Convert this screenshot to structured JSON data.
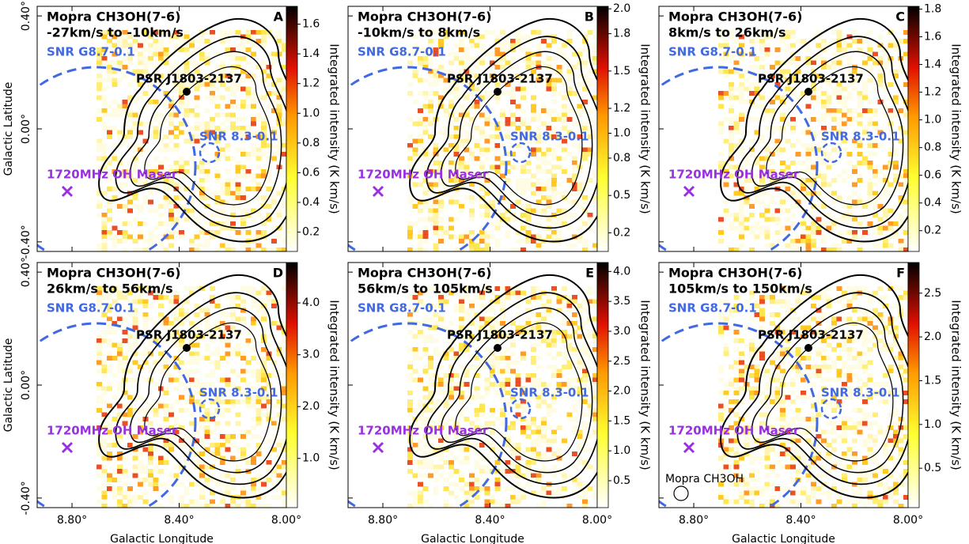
{
  "chart_data": [
    {
      "type": "map",
      "panel": "A",
      "title": [
        "Mopra CH3OH(7-6)",
        "-27km/s to -10km/s"
      ],
      "xlim": [
        8.93,
        8.0
      ],
      "ylim": [
        -0.434,
        0.434
      ],
      "xticks": [
        8.8,
        8.4,
        8.0
      ],
      "yticks": [
        {
          "value": 0.4,
          "label": "0.40°"
        },
        {
          "value": 0,
          "label": "0.00°"
        },
        {
          "value": -0.4,
          "label": "-0.40°"
        }
      ],
      "y_label": "Galactic Latitude",
      "clim": [
        0.07,
        1.72
      ],
      "cticks": [
        0.2,
        0.4,
        0.6,
        0.8,
        {
          "value": 1,
          "label": "1.0"
        },
        1.2,
        1.4,
        1.6
      ],
      "colorbar_label": "Integrated intensity (K km/s)",
      "annotations": {
        "snr_g": "SNR G8.7-0.1",
        "psr": "PSR J1803-2137",
        "snr_8": "SNR 8.3-0.1",
        "maser": "1720MHz OH Maser"
      }
    },
    {
      "type": "map",
      "panel": "B",
      "title": [
        "Mopra CH3OH(7-6)",
        "-10km/s to 8km/s"
      ],
      "xlim": [
        8.93,
        8.0
      ],
      "ylim": [
        -0.434,
        0.434
      ],
      "xticks": [
        8.8,
        8.4,
        8.0
      ],
      "yticks": [
        0.4,
        0,
        -0.4
      ],
      "clim": [
        0.05,
        2.02
      ],
      "cticks": [
        0.2,
        0.5,
        0.8,
        {
          "value": 1,
          "label": "1.0"
        },
        1.2,
        1.5,
        1.8,
        {
          "value": 2,
          "label": "2.0"
        }
      ],
      "colorbar_label": "Integrated intensity (K km/s)",
      "annotations": {
        "snr_g": "SNR G8.7-0.1",
        "psr": "PSR J1803-2137",
        "snr_8": "SNR 8.3-0.1",
        "maser": "1720MHz OH Maser"
      }
    },
    {
      "type": "map",
      "panel": "C",
      "title": [
        "Mopra CH3OH(7-6)",
        "8km/s to 26km/s"
      ],
      "xlim": [
        8.93,
        8.0
      ],
      "ylim": [
        -0.434,
        0.434
      ],
      "xticks": [
        8.8,
        8.4,
        8.0
      ],
      "yticks": [
        0.4,
        0,
        -0.4
      ],
      "clim": [
        0.05,
        1.82
      ],
      "cticks": [
        0.2,
        0.4,
        0.6,
        0.8,
        {
          "value": 1,
          "label": "1.0"
        },
        1.2,
        1.4,
        1.6,
        1.8
      ],
      "colorbar_label": "Integrated intensity (K km/s)",
      "annotations": {
        "snr_g": "SNR G8.7-0.1",
        "psr": "PSR J1803-2137",
        "snr_8": "SNR 8.3-0.1",
        "maser": "1720MHz OH Maser"
      }
    },
    {
      "type": "map",
      "panel": "D",
      "title": [
        "Mopra CH3OH(7-6)",
        "26km/s to 56km/s"
      ],
      "xlim": [
        8.93,
        8.0
      ],
      "ylim": [
        -0.434,
        0.434
      ],
      "xticks": [
        {
          "value": 8.8,
          "label": "8.80°"
        },
        {
          "value": 8.4,
          "label": "8.40°"
        },
        {
          "value": 8.0,
          "label": "8.00°"
        }
      ],
      "yticks": [
        {
          "value": 0.4,
          "label": "0.40°"
        },
        {
          "value": 0,
          "label": "0.00°"
        },
        {
          "value": -0.4,
          "label": "-0.40°"
        }
      ],
      "x_label": "Galactic Longitude",
      "y_label": "Galactic Latitude",
      "clim": [
        0.05,
        4.78
      ],
      "cticks": [
        {
          "value": 1,
          "label": "1.0"
        },
        {
          "value": 2,
          "label": "2.0"
        },
        {
          "value": 3,
          "label": "3.0"
        },
        {
          "value": 4,
          "label": "4.0"
        }
      ],
      "colorbar_label": "Integrated intensity (K km/s)",
      "annotations": {
        "snr_g": "SNR G8.7-0.1",
        "psr": "PSR J1803-2137",
        "snr_8": "SNR 8.3-0.1",
        "maser": "1720MHz OH Maser"
      }
    },
    {
      "type": "map",
      "panel": "E",
      "title": [
        "Mopra CH3OH(7-6)",
        "56km/s to 105km/s"
      ],
      "xlim": [
        8.93,
        8.0
      ],
      "ylim": [
        -0.434,
        0.434
      ],
      "xticks": [
        {
          "value": 8.8,
          "label": "8.80°"
        },
        {
          "value": 8.4,
          "label": "8.40°"
        },
        {
          "value": 8.0,
          "label": "8.00°"
        }
      ],
      "yticks": [
        0.4,
        0,
        -0.4
      ],
      "x_label": "Galactic Longitude",
      "clim": [
        0.05,
        4.15
      ],
      "cticks": [
        0.5,
        {
          "value": 1,
          "label": "1.0"
        },
        1.5,
        {
          "value": 2,
          "label": "2.0"
        },
        2.5,
        {
          "value": 3,
          "label": "3.0"
        },
        3.5,
        {
          "value": 4,
          "label": "4.0"
        }
      ],
      "colorbar_label": "Integrated intensity (K km/s)",
      "annotations": {
        "snr_g": "SNR G8.7-0.1",
        "psr": "PSR J1803-2137",
        "snr_8": "SNR 8.3-0.1",
        "maser": "1720MHz OH Maser"
      }
    },
    {
      "type": "map",
      "panel": "F",
      "title": [
        "Mopra CH3OH(7-6)",
        "105km/s to 150km/s"
      ],
      "xlim": [
        8.93,
        8.0
      ],
      "ylim": [
        -0.434,
        0.434
      ],
      "xticks": [
        {
          "value": 8.8,
          "label": "8.80°"
        },
        {
          "value": 8.4,
          "label": "8.40°"
        },
        {
          "value": 8.0,
          "label": "8.00°"
        }
      ],
      "yticks": [
        0.4,
        0,
        -0.4
      ],
      "x_label": "Galactic Longitude",
      "clim": [
        0.05,
        2.85
      ],
      "cticks": [
        0.5,
        {
          "value": 1,
          "label": "1.0"
        },
        1.5,
        {
          "value": 2,
          "label": "2.0"
        },
        2.5
      ],
      "colorbar_label": "Integrated intensity (K km/s)",
      "annotations": {
        "snr_g": "SNR G8.7-0.1",
        "psr": "PSR J1803-2137",
        "snr_8": "SNR 8.3-0.1",
        "maser": "1720MHz OH Maser"
      },
      "beam_label": "Mopra CH3OH"
    }
  ]
}
